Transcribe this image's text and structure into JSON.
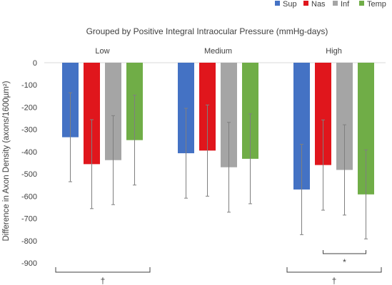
{
  "chart_data": {
    "type": "bar",
    "title": "Grouped by Positive Integral Intraocular Pressure (mmHg-days)",
    "ylabel": "Difference in Axon Density (axons/1600µm²)",
    "xlabel": "",
    "ylim": [
      -900,
      0
    ],
    "yticks": [
      0,
      -100,
      -200,
      -300,
      -400,
      -500,
      -600,
      -700,
      -800,
      -900
    ],
    "grid": false,
    "legend_position": "top-right",
    "categories": [
      "Low",
      "Medium",
      "High"
    ],
    "series": [
      {
        "name": "Sup",
        "color": "#4472C4",
        "values": [
          -335,
          -407,
          -570
        ],
        "errors": [
          200,
          202,
          203
        ]
      },
      {
        "name": "Nas",
        "color": "#E0161C",
        "values": [
          -456,
          -395,
          -460
        ],
        "errors": [
          200,
          205,
          203
        ]
      },
      {
        "name": "Inf",
        "color": "#A5A5A5",
        "values": [
          -438,
          -470,
          -482
        ],
        "errors": [
          200,
          202,
          203
        ]
      },
      {
        "name": "Temp",
        "color": "#70AD47",
        "values": [
          -348,
          -432,
          -592
        ],
        "errors": [
          202,
          202,
          200
        ]
      }
    ],
    "annotations": [
      {
        "label": "†",
        "spans": [
          "Low"
        ],
        "type": "bracket-below"
      },
      {
        "label": "†",
        "spans": [
          "High"
        ],
        "type": "bracket-below"
      },
      {
        "label": "*",
        "spans_series": [
          "Nas",
          "Temp"
        ],
        "category": "High",
        "type": "bracket-below"
      }
    ]
  }
}
